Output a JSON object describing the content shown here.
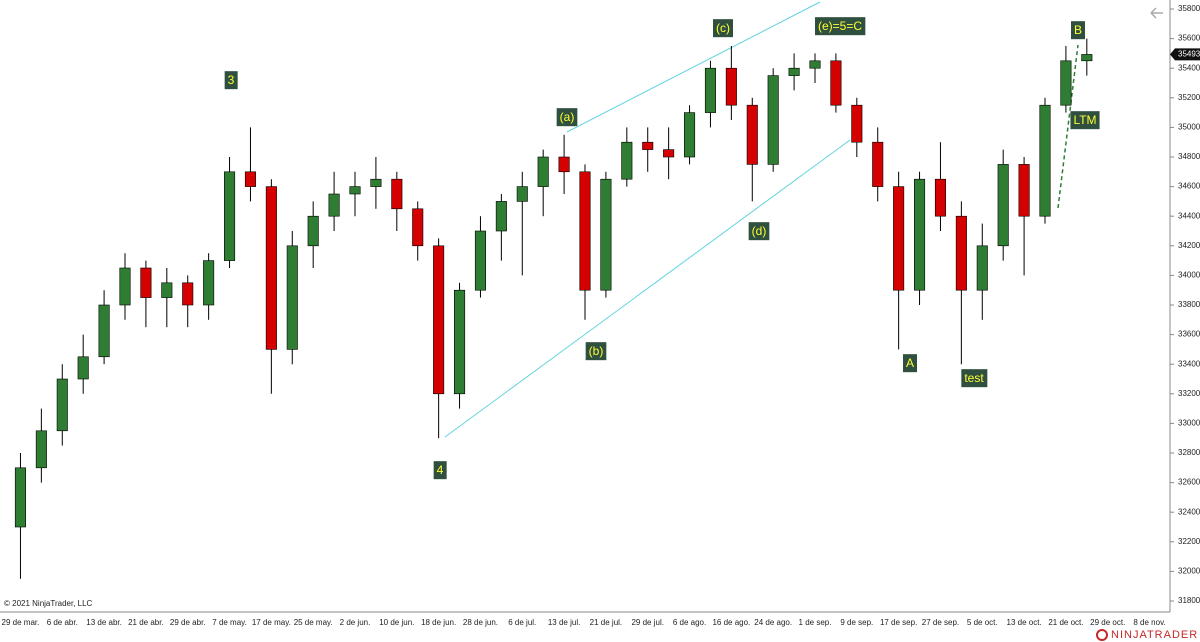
{
  "chart_data": {
    "type": "candlestick",
    "categories": [
      "29 de mar.",
      null,
      "6 de abr.",
      null,
      "13 de abr.",
      null,
      "21 de abr.",
      null,
      "29 de abr.",
      null,
      "7 de may.",
      null,
      "17 de may.",
      null,
      "25 de may.",
      null,
      "2 de jun.",
      null,
      "10 de jun.",
      null,
      "18 de jun.",
      null,
      "28 de jun.",
      null,
      "6 de jul.",
      null,
      "13 de jul.",
      null,
      "21 de jul.",
      null,
      "29 de jul.",
      null,
      "6 de ago.",
      null,
      "16 de ago.",
      null,
      "24 de ago.",
      null,
      "1 de sep.",
      null,
      "9 de sep.",
      null,
      "17 de sep.",
      null,
      "27 de sep.",
      null,
      "5 de oct.",
      null,
      "13 de oct.",
      null,
      "21 de oct.",
      null,
      "29 de oct.",
      null,
      "8 de nov."
    ],
    "open": [
      32300,
      32700,
      32950,
      33300,
      33450,
      33800,
      34050,
      33850,
      33950,
      33800,
      34100,
      34700,
      34600,
      33500,
      34200,
      34400,
      34550,
      34600,
      34650,
      34450,
      34200,
      33200,
      33900,
      34300,
      34500,
      34600,
      34800,
      34700,
      33900,
      34650,
      34900,
      34850,
      34800,
      35100,
      35400,
      35150,
      34750,
      35350,
      35400,
      35450,
      35150,
      34900,
      34600,
      33900,
      34650,
      34400,
      33900,
      34200,
      34750,
      34400,
      35150,
      35450,
      null,
      null,
      null
    ],
    "high": [
      32800,
      33100,
      33400,
      33600,
      33900,
      34150,
      34100,
      34050,
      34000,
      34150,
      34800,
      35000,
      34650,
      34300,
      34500,
      34700,
      34700,
      34800,
      34700,
      34500,
      34250,
      33950,
      34400,
      34550,
      34700,
      34850,
      34950,
      34750,
      34700,
      35000,
      35000,
      35000,
      35150,
      35450,
      35550,
      35200,
      35400,
      35500,
      35500,
      35500,
      35200,
      35000,
      34700,
      34700,
      34900,
      34500,
      34350,
      34850,
      34800,
      35200,
      35550,
      35600,
      null,
      null,
      null
    ],
    "low": [
      31950,
      32600,
      32850,
      33200,
      33400,
      33700,
      33650,
      33650,
      33650,
      33700,
      34050,
      34500,
      33200,
      33400,
      34050,
      34300,
      34400,
      34450,
      34300,
      34100,
      32900,
      33100,
      33850,
      34100,
      34000,
      34400,
      34550,
      33700,
      33850,
      34600,
      34700,
      34650,
      34750,
      35000,
      35050,
      34500,
      34700,
      35250,
      35300,
      35100,
      34800,
      34500,
      33500,
      33800,
      34300,
      33400,
      33700,
      34100,
      34000,
      34350,
      35100,
      35350,
      null,
      null,
      null
    ],
    "close": [
      32700,
      32950,
      33300,
      33450,
      33800,
      34050,
      33850,
      33950,
      33800,
      34100,
      34700,
      34600,
      33500,
      34200,
      34400,
      34550,
      34600,
      34650,
      34450,
      34200,
      33200,
      33900,
      34300,
      34500,
      34600,
      34800,
      34700,
      33900,
      34650,
      34900,
      34850,
      34800,
      35100,
      35400,
      35150,
      34750,
      35350,
      35400,
      35450,
      35150,
      34900,
      34600,
      33900,
      34650,
      34400,
      33900,
      34200,
      34750,
      34400,
      35150,
      35450,
      35493,
      null,
      null,
      null
    ],
    "up_color": "#2e7d32",
    "down_color": "#d50000",
    "ylim": [
      31800,
      35800
    ],
    "yticks": [
      31800,
      32000,
      32200,
      32400,
      32600,
      32800,
      33000,
      33200,
      33400,
      33600,
      33800,
      34000,
      34200,
      34400,
      34600,
      34800,
      35000,
      35200,
      35400,
      35600,
      35800
    ],
    "annotations": [
      "3",
      "4",
      "(a)",
      "(b)",
      "(c)",
      "(d)",
      "(e)=5=C",
      "A",
      "B",
      "test",
      "LTM"
    ],
    "copyright": "© 2021 NinjaTrader, LLC",
    "logo": "NINJATRADER"
  }
}
